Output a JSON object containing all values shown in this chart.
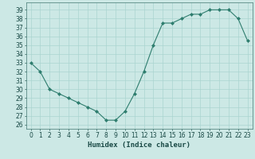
{
  "x": [
    0,
    1,
    2,
    3,
    4,
    5,
    6,
    7,
    8,
    9,
    10,
    11,
    12,
    13,
    14,
    15,
    16,
    17,
    18,
    19,
    20,
    21,
    22,
    23
  ],
  "y": [
    33,
    32,
    30,
    29.5,
    29,
    28.5,
    28,
    27.5,
    26.5,
    26.5,
    27.5,
    29.5,
    32,
    35,
    37.5,
    37.5,
    38,
    38.5,
    38.5,
    39,
    39,
    39,
    38,
    35.5
  ],
  "xlabel": "Humidex (Indice chaleur)",
  "xlim": [
    -0.5,
    23.5
  ],
  "ylim": [
    25.5,
    39.8
  ],
  "yticks": [
    26,
    27,
    28,
    29,
    30,
    31,
    32,
    33,
    34,
    35,
    36,
    37,
    38,
    39
  ],
  "xticks": [
    0,
    1,
    2,
    3,
    4,
    5,
    6,
    7,
    8,
    9,
    10,
    11,
    12,
    13,
    14,
    15,
    16,
    17,
    18,
    19,
    20,
    21,
    22,
    23
  ],
  "line_color": "#2e7d6e",
  "marker_color": "#2e7d6e",
  "bg_color": "#cce8e5",
  "grid_major_color": "#aad4d0",
  "grid_minor_color": "#bbdeda",
  "text_color": "#1a4a46"
}
